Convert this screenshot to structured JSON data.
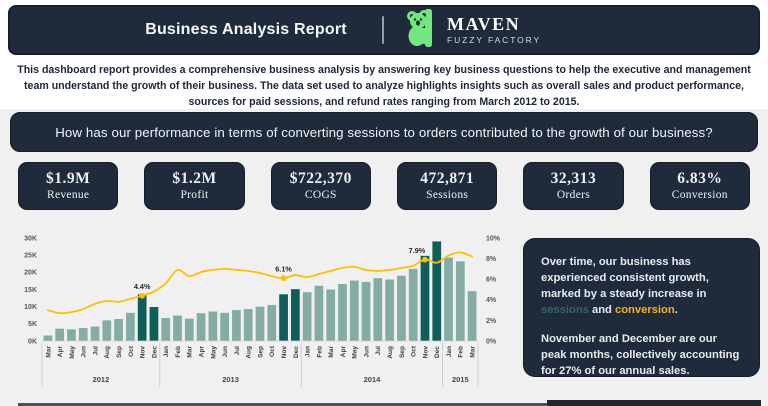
{
  "header": {
    "title": "Business Analysis Report",
    "brand": {
      "name": "MAVEN",
      "subtitle": "FUZZY FACTORY"
    }
  },
  "description": "This dashboard report provides a comprehensive business analysis by answering key business questions to help the executive and management team understand the growth of their business. The data set used to analyze highlights insights such as overall sales and product performance, sources for paid sessions, and refund rates ranging from March 2012 to 2015.",
  "question": "How has our performance in terms of converting sessions to orders contributed to the growth of our business?",
  "kpis": [
    {
      "value": "$1.9M",
      "label": "Revenue"
    },
    {
      "value": "$1.2M",
      "label": "Profit"
    },
    {
      "value": "$722,370",
      "label": "COGS"
    },
    {
      "value": "472,871",
      "label": "Sessions"
    },
    {
      "value": "32,313",
      "label": "Orders"
    },
    {
      "value": "6.83%",
      "label": "Conversion"
    }
  ],
  "chart_data": {
    "type": "combo-bar-line",
    "title": "Monthly sessions (bars) and conversion rate (line), Mar 2012 - Mar 2015",
    "categories": [
      "Mar",
      "Apr",
      "May",
      "Jun",
      "Jul",
      "Aug",
      "Sep",
      "Oct",
      "Nov",
      "Dec",
      "Jan",
      "Feb",
      "Mar",
      "Apr",
      "May",
      "Jun",
      "Jul",
      "Aug",
      "Sep",
      "Oct",
      "Nov",
      "Dec",
      "Jan",
      "Feb",
      "Mar",
      "Apr",
      "May",
      "Jun",
      "Jul",
      "Aug",
      "Sep",
      "Oct",
      "Nov",
      "Dec",
      "Jan",
      "Feb",
      "Mar"
    ],
    "year_groups": [
      {
        "label": "2012",
        "months": 10
      },
      {
        "label": "2013",
        "months": 12
      },
      {
        "label": "2014",
        "months": 12
      },
      {
        "label": "2015",
        "months": 3
      }
    ],
    "series": [
      {
        "name": "Sessions",
        "type": "bar",
        "values": [
          1600,
          3600,
          3400,
          3800,
          4200,
          6000,
          6400,
          8200,
          13600,
          9900,
          6700,
          7400,
          6500,
          8100,
          8600,
          8200,
          9000,
          9300,
          10000,
          10500,
          13600,
          15100,
          14200,
          16100,
          15000,
          16600,
          17600,
          17200,
          18300,
          17900,
          19000,
          21000,
          24800,
          29000,
          24300,
          23200,
          14500
        ]
      },
      {
        "name": "Conversion",
        "type": "line",
        "unit": "%",
        "values": [
          3.0,
          2.7,
          2.8,
          3.1,
          3.6,
          3.9,
          3.8,
          4.1,
          4.4,
          4.8,
          5.6,
          6.9,
          6.3,
          6.7,
          6.9,
          7.0,
          6.9,
          6.8,
          6.6,
          6.3,
          6.1,
          6.4,
          6.2,
          6.5,
          6.8,
          7.1,
          7.2,
          6.9,
          6.8,
          6.9,
          7.1,
          7.3,
          7.9,
          7.6,
          8.3,
          8.6,
          8.2
        ]
      }
    ],
    "highlight_indices": [
      8,
      9,
      20,
      21,
      32,
      33
    ],
    "callouts": [
      {
        "index": 8,
        "label": "4.4%",
        "dx": 0
      },
      {
        "index": 20,
        "label": "6.1%",
        "dx": 0
      },
      {
        "index": 32,
        "label": "7.9%",
        "dx": -8
      }
    ],
    "left_axis": {
      "ticks": [
        "0K",
        "5K",
        "10K",
        "15K",
        "20K",
        "25K",
        "30K"
      ],
      "max": 30000
    },
    "right_axis": {
      "ticks": [
        "0%",
        "2%",
        "4%",
        "6%",
        "8%",
        "10%"
      ],
      "max": 10
    },
    "legend_position": "none",
    "grid": false
  },
  "insight": {
    "p1_prefix": "Over time, our business has experienced consistent growth, marked by a steady increase in ",
    "sessions_word": "sessions",
    "and_word": " and ",
    "conversion_word": "conversion",
    "p1_suffix": ".",
    "p2": "November and December are our peak months, collectively accounting for 27% of our annual sales."
  },
  "colors": {
    "navy": "#1f2a3a",
    "bar": "#84aba4",
    "bar_highlight": "#0f5e59",
    "line": "#ffc000",
    "koala_green": "#74e67f",
    "axis_text": "#565656",
    "callout_text": "#1e2733"
  }
}
